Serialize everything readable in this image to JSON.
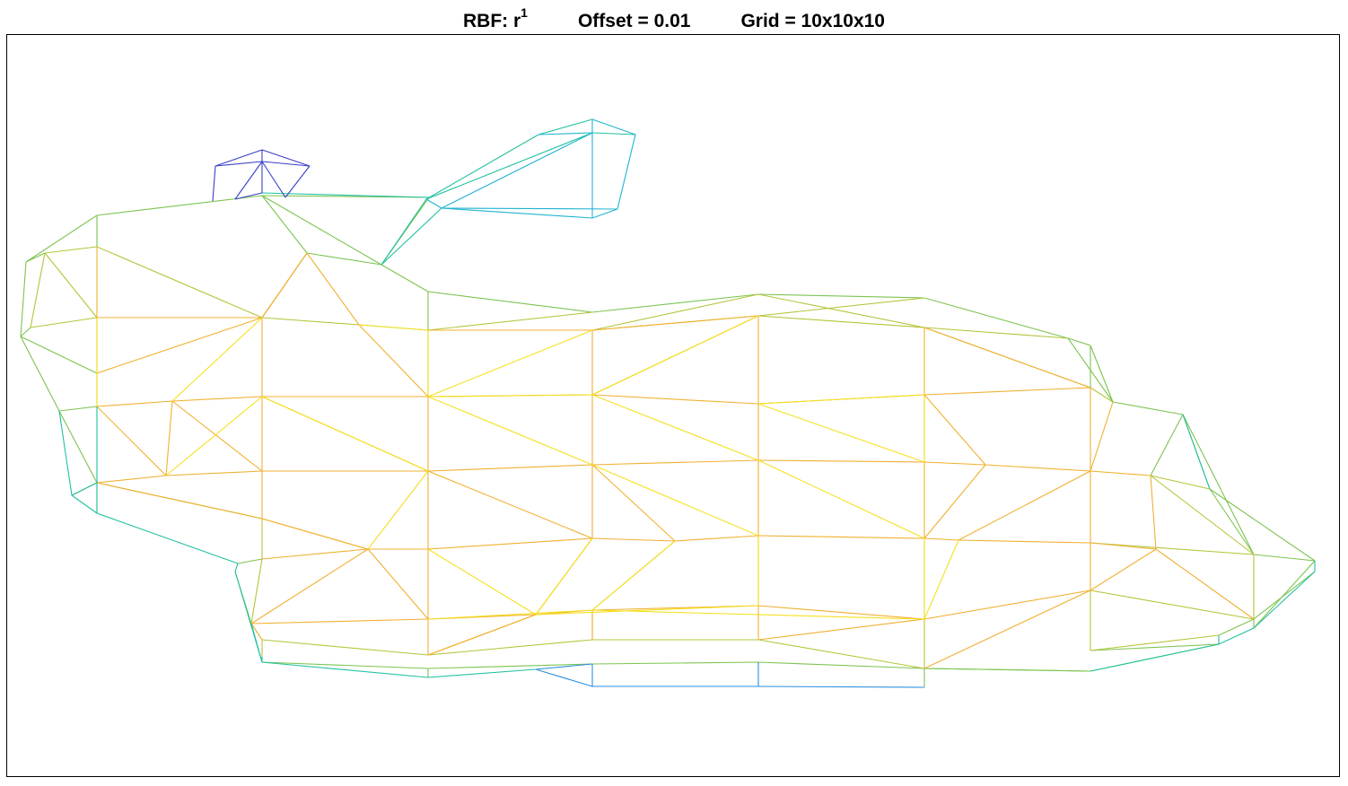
{
  "title": {
    "rbf_label": "RBF: r",
    "rbf_exponent": "1",
    "offset": "Offset = 0.01",
    "grid": "Grid = 10x10x10"
  },
  "colors": {
    "dark_blue": "#3a3fc8",
    "blue": "#2a8fe0",
    "cyan": "#1fb4cf",
    "teal": "#22c0a0",
    "green": "#7cc450",
    "yellow_green": "#b6c43a",
    "orange": "#f0b030",
    "yellow": "#f5e020",
    "frame": "#000000"
  }
}
